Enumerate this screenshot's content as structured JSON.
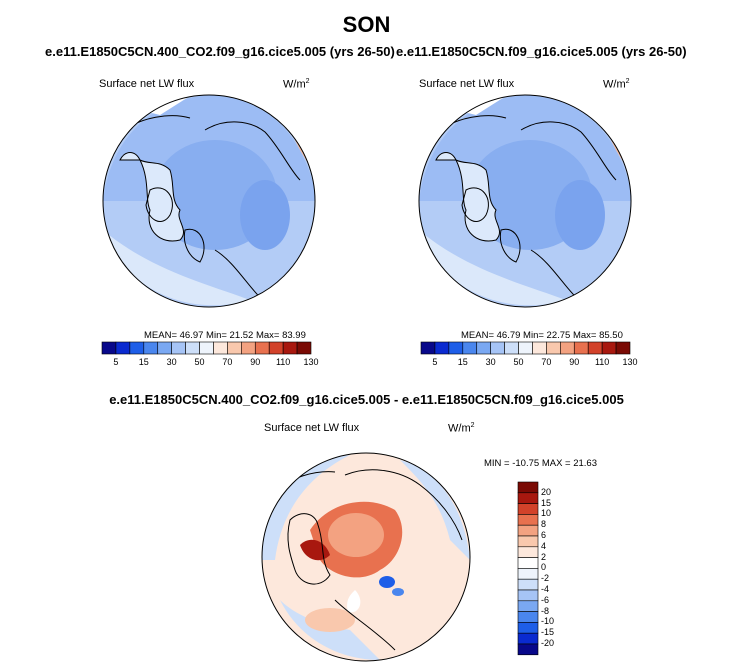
{
  "title": "SON",
  "panels": [
    {
      "case": "e.e11.E1850C5CN.400_CO2.f09_g16.cice5.005 (yrs 26-50)",
      "variable": "Surface net LW flux",
      "units": "W/m",
      "units_exp": "2",
      "stats": "MEAN=  46.97  Min=  21.52  Max=  83.99",
      "colorbar_labels": [
        "5",
        "15",
        "30",
        "50",
        "70",
        "90",
        "110",
        "130"
      ]
    },
    {
      "case": "e.e11.E1850C5CN.f09_g16.cice5.005 (yrs 26-50)",
      "variable": "Surface net LW flux",
      "units": "W/m",
      "units_exp": "2",
      "stats": "MEAN=  46.79  Min=  22.75  Max=  85.50",
      "colorbar_labels": [
        "5",
        "15",
        "30",
        "50",
        "70",
        "90",
        "110",
        "130"
      ]
    }
  ],
  "diff": {
    "case": "e.e11.E1850C5CN.400_CO2.f09_g16.cice5.005 - e.e11.E1850C5CN.f09_g16.cice5.005",
    "variable": "Surface net LW flux",
    "units": "W/m",
    "units_exp": "2",
    "stats": "MIN = -10.75 MAX =  21.63",
    "colorbar_labels": [
      "20",
      "15",
      "10",
      "8",
      "6",
      "4",
      "2",
      "0",
      "-2",
      "-4",
      "-6",
      "-8",
      "-10",
      "-15",
      "-20"
    ]
  },
  "colors": {
    "abs_scale": [
      "#08088a",
      "#0a2ad0",
      "#1e5ee8",
      "#4a86ee",
      "#7aa8f2",
      "#a6c4f6",
      "#cddff9",
      "#eef4fc",
      "#fde8dc",
      "#f9c8ad",
      "#f3a281",
      "#e8714f",
      "#d2422a",
      "#a8180f",
      "#7a0a04"
    ],
    "diff_scale": [
      "#7a0a04",
      "#a8180f",
      "#d2422a",
      "#e8714f",
      "#f3a281",
      "#f9c8ad",
      "#fde8dc",
      "#ffffff",
      "#eef4fc",
      "#cddff9",
      "#a6c4f6",
      "#7aa8f2",
      "#4a86ee",
      "#1e5ee8",
      "#0a2ad0",
      "#08088a"
    ]
  }
}
